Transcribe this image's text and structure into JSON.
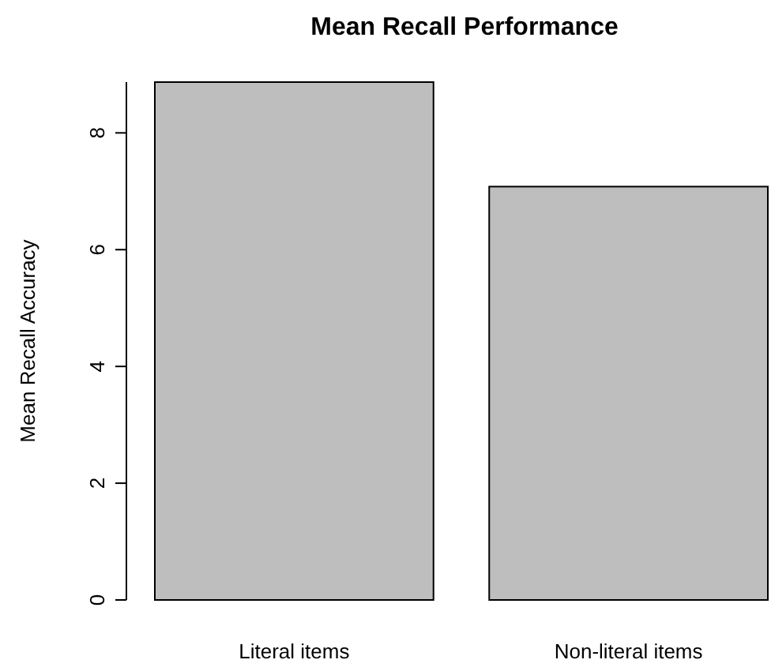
{
  "chart_data": {
    "type": "bar",
    "title": "Mean Recall Performance",
    "ylabel": "Mean Recall Accuracy",
    "categories": [
      "Literal items",
      "Non-literal items"
    ],
    "values": [
      8.87,
      7.08
    ],
    "color": "#bebebe",
    "ylim": [
      0,
      8.87
    ],
    "yticks": [
      0,
      2,
      4,
      6,
      8
    ]
  }
}
